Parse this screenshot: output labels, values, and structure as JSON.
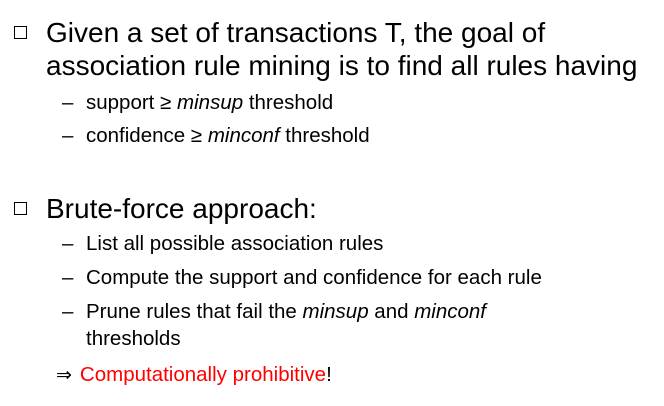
{
  "colors": {
    "text": "#000000",
    "emphasis": "#ff0000"
  },
  "icons": {
    "bullet": "square-bullet-icon",
    "sub_bullet": "dash",
    "implies": "implies-arrow-icon"
  },
  "goal": {
    "line1": "Given a set of transactions T, the goal of",
    "line2": "association rule mining is to find all rules having",
    "subs": [
      {
        "dash": "–",
        "before": "support ≥ ",
        "italic": "minsup",
        "after": " threshold"
      },
      {
        "dash": "–",
        "before": "confidence ≥ ",
        "italic": "minconf",
        "after": " threshold"
      }
    ]
  },
  "brute": {
    "heading": "Brute-force approach:",
    "steps": [
      {
        "dash": "–",
        "text": "List all possible association rules"
      },
      {
        "dash": "–",
        "text": "Compute the support and confidence for each rule"
      }
    ],
    "prune": {
      "dash": "–",
      "before": "Prune rules that fail the ",
      "italic1": "minsup",
      "middle": " and ",
      "italic2": "minconf",
      "line2": "thresholds"
    }
  },
  "conclusion": {
    "arrow": "⇒",
    "highlight": "Computationally prohibitive",
    "suffix": "!"
  }
}
